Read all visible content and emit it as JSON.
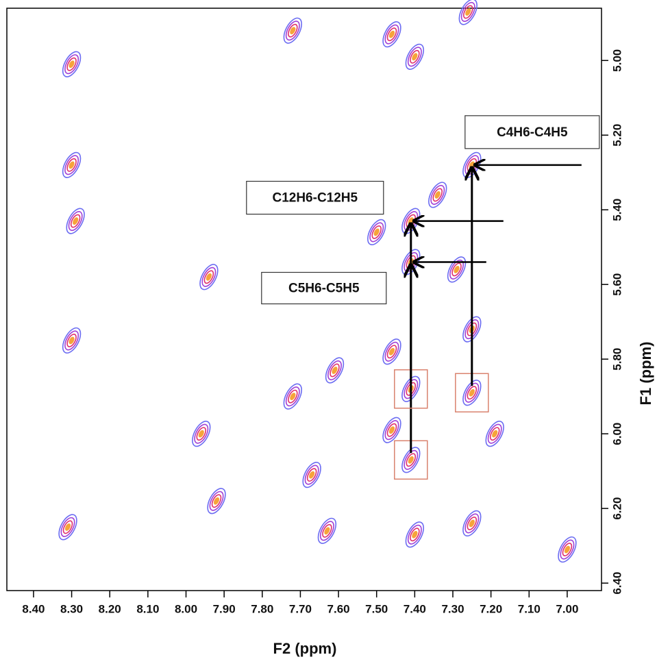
{
  "chart_data": {
    "type": "contour",
    "x_label": "F2 (ppm)",
    "y_label": "F1 (ppm)",
    "xlim": [
      8.47,
      6.91
    ],
    "ylim": [
      4.86,
      6.42
    ],
    "xticks": [
      {
        "value": 8.4,
        "label": "8.40"
      },
      {
        "value": 8.3,
        "label": "8.30"
      },
      {
        "value": 8.2,
        "label": "8.20"
      },
      {
        "value": 8.1,
        "label": "8.10"
      },
      {
        "value": 8.0,
        "label": "8.00"
      },
      {
        "value": 7.9,
        "label": "7.90"
      },
      {
        "value": 7.8,
        "label": "7.80"
      },
      {
        "value": 7.7,
        "label": "7.70"
      },
      {
        "value": 7.6,
        "label": "7.60"
      },
      {
        "value": 7.5,
        "label": "7.50"
      },
      {
        "value": 7.4,
        "label": "7.40"
      },
      {
        "value": 7.3,
        "label": "7.30"
      },
      {
        "value": 7.2,
        "label": "7.20"
      },
      {
        "value": 7.1,
        "label": "7.10"
      },
      {
        "value": 7.0,
        "label": "7.00"
      }
    ],
    "yticks": [
      {
        "value": 5.0,
        "label": "5.00"
      },
      {
        "value": 5.2,
        "label": "5.20"
      },
      {
        "value": 5.4,
        "label": "5.40"
      },
      {
        "value": 5.6,
        "label": "5.60"
      },
      {
        "value": 5.8,
        "label": "5.80"
      },
      {
        "value": 6.0,
        "label": "6.00"
      },
      {
        "value": 6.2,
        "label": "6.20"
      },
      {
        "value": 6.4,
        "label": "6.40"
      }
    ],
    "level_colors": [
      "#6b6cf2",
      "#a13fd6",
      "#e0306b",
      "#f6a43a"
    ],
    "peaks": {
      "x": [
        8.3,
        8.3,
        8.29,
        8.3,
        8.31,
        7.94,
        7.96,
        7.72,
        7.72,
        7.67,
        7.92,
        7.46,
        7.4,
        7.26,
        7.41,
        7.41,
        7.25,
        7.41,
        7.41,
        7.25,
        7.25,
        7.46,
        7.46,
        7.19,
        7.4,
        7.25,
        7.63,
        7.61,
        7.29,
        7.0,
        7.34,
        7.5
      ],
      "y": [
        5.01,
        5.28,
        5.43,
        5.75,
        6.25,
        5.58,
        6.0,
        4.92,
        5.9,
        6.11,
        6.18,
        4.93,
        4.99,
        4.87,
        5.43,
        5.54,
        5.28,
        5.88,
        6.07,
        5.89,
        5.72,
        5.78,
        5.99,
        6.0,
        6.27,
        6.24,
        6.26,
        5.83,
        5.56,
        6.31,
        5.36,
        5.46
      ]
    },
    "annotations": [
      {
        "text": "C4H6-C4H5",
        "x": 7.25,
        "y": 5.28,
        "from": [
          7.25,
          5.89
        ]
      },
      {
        "text": "C12H6-C12H5",
        "x": 7.41,
        "y": 5.43,
        "from": [
          7.41,
          6.07
        ]
      },
      {
        "text": "C5H6-C5H5",
        "x": 7.41,
        "y": 5.54,
        "from": [
          7.41,
          5.88
        ]
      }
    ]
  }
}
